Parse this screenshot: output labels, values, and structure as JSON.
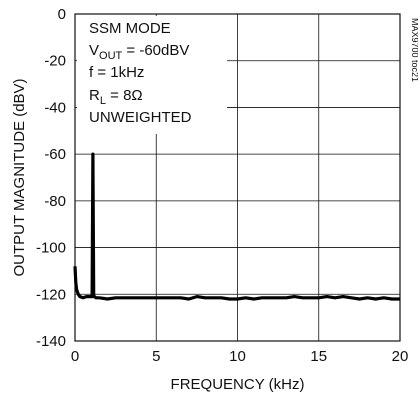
{
  "chart_data": {
    "type": "line",
    "title": "",
    "xlabel": "FREQUENCY (kHz)",
    "ylabel": "OUTPUT MAGNITUDE (dBV)",
    "xlim": [
      0,
      20
    ],
    "ylim": [
      -140,
      0
    ],
    "xticks": [
      "0",
      "5",
      "10",
      "15",
      "20"
    ],
    "yticks": [
      "0",
      "-20",
      "-40",
      "-60",
      "-80",
      "-100",
      "-120",
      "-140"
    ],
    "grid": true,
    "annotations": {
      "mode": "SSM MODE",
      "vout_prefix": "V",
      "vout_sub": "OUT",
      "vout_value": " = -60dBV",
      "freq": "f = 1kHz",
      "rl_prefix": "R",
      "rl_sub": "L",
      "rl_value": " = 8Ω",
      "weighting": "UNWEIGHTED"
    },
    "figure_code": "MAX9700 toc21",
    "series": [
      {
        "x": [
          0.0,
          0.05,
          0.1,
          0.2,
          0.3,
          0.5,
          0.7,
          0.9,
          1.0,
          1.05,
          1.1,
          1.15,
          1.2,
          1.3,
          1.5,
          2,
          2.5,
          3,
          3.5,
          4,
          4.5,
          5,
          5.5,
          6,
          6.5,
          7,
          7.5,
          8,
          8.5,
          9,
          9.5,
          10,
          10.5,
          11,
          11.5,
          12,
          12.5,
          13,
          13.5,
          14,
          14.5,
          15,
          15.5,
          16,
          16.5,
          17,
          17.5,
          18,
          18.5,
          19,
          19.5,
          20
        ],
        "values": [
          -108,
          -115,
          -118,
          -120,
          -121,
          -121.5,
          -121,
          -121,
          -121,
          -121,
          -60,
          -121,
          -121,
          -121.5,
          -121.5,
          -122,
          -121.5,
          -121.5,
          -121.5,
          -121.5,
          -121.5,
          -121.5,
          -121.5,
          -121.5,
          -121.5,
          -122,
          -121,
          -121.5,
          -121.5,
          -121.5,
          -122,
          -122,
          -121.5,
          -122,
          -121.5,
          -121.5,
          -121.5,
          -121.5,
          -121,
          -121.5,
          -121.5,
          -121.5,
          -121,
          -121.5,
          -121,
          -121.5,
          -122,
          -121.5,
          -122,
          -121.5,
          -122,
          -122
        ]
      }
    ]
  }
}
